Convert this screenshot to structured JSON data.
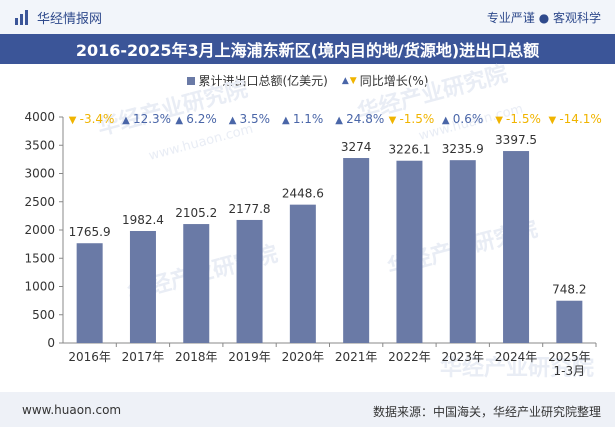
{
  "header": {
    "brand_name": "华经情报网",
    "tagline": "专业严谨 ● 客观科学"
  },
  "title": "2016-2025年3月上海浦东新区(境内目的地/货源地)进出口总额",
  "legend": {
    "series_total": "累计进出口总额(亿美元)",
    "series_growth": "同比增长(%)"
  },
  "footer": {
    "url": "www.huaon.com",
    "source": "数据来源：中国海关，华经产业研究院整理"
  },
  "watermark": "华经产业研究院",
  "watermark_url": "www.huaon.com",
  "colors": {
    "bar": "#6a7aa6",
    "up": "#4a66a8",
    "down": "#f0b400",
    "title_bg": "#3b5598"
  },
  "chart_data": {
    "type": "bar",
    "categories": [
      "2016年",
      "2017年",
      "2018年",
      "2019年",
      "2020年",
      "2021年",
      "2022年",
      "2023年",
      "2024年",
      "2025年\n1-3月"
    ],
    "series": [
      {
        "name": "累计进出口总额(亿美元)",
        "values": [
          1765.9,
          1982.4,
          2105.2,
          2177.8,
          2448.6,
          3274,
          3226.1,
          3235.9,
          3397.5,
          748.2
        ],
        "value_labels": [
          "1765.9",
          "1982.4",
          "2105.2",
          "2177.8",
          "2448.6",
          "3274",
          "3226.1",
          "3235.9",
          "3397.5",
          "748.2"
        ]
      },
      {
        "name": "同比增长(%)",
        "values": [
          -3.4,
          12.3,
          6.2,
          3.5,
          1.1,
          24.8,
          -1.5,
          0.6,
          -1.5,
          -14.1
        ],
        "value_labels": [
          "-3.4%",
          "12.3%",
          "6.2%",
          "3.5%",
          "1.1%",
          "24.8%",
          "-1.5%",
          "0.6%",
          "-1.5%",
          "-14.1%"
        ]
      }
    ],
    "ylim": [
      0,
      4000
    ],
    "yticks": [
      "0",
      "500",
      "1000",
      "1500",
      "2000",
      "2500",
      "3000",
      "3500",
      "4000"
    ],
    "grid": false,
    "legend_position": "top"
  }
}
